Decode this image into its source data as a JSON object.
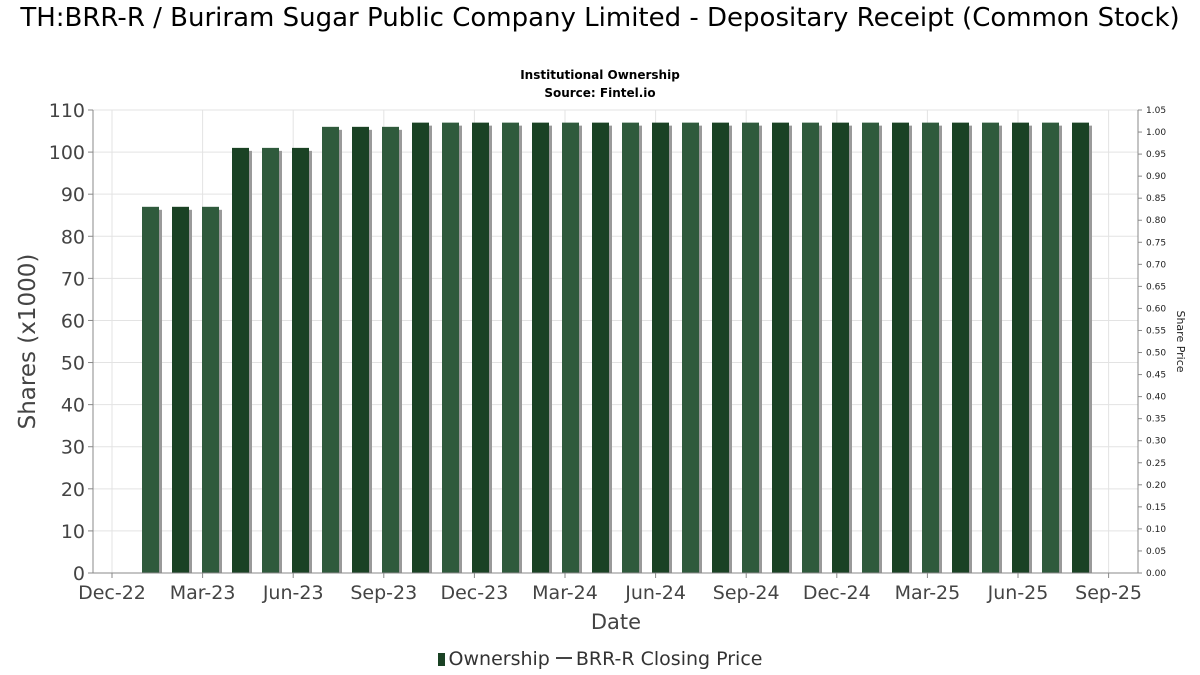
{
  "chart_data": {
    "type": "bar",
    "title": "TH:BRR-R / Buriram Sugar Public Company Limited - Depositary Receipt (Common Stock)",
    "subtitle": "Institutional Ownership",
    "source": "Source: Fintel.io",
    "xlabel": "Date",
    "ylabel": "Shares (x1000)",
    "y2label": "Share Price",
    "ylim": [
      0,
      110
    ],
    "y2lim": [
      0,
      1.05
    ],
    "yticks": [
      "0",
      "10",
      "20",
      "30",
      "40",
      "50",
      "60",
      "70",
      "80",
      "90",
      "100",
      "110"
    ],
    "y2ticks": [
      "0.00",
      "0.05",
      "0.10",
      "0.15",
      "0.20",
      "0.25",
      "0.30",
      "0.35",
      "0.40",
      "0.45",
      "0.50",
      "0.55",
      "0.60",
      "0.65",
      "0.70",
      "0.75",
      "0.80",
      "0.85",
      "0.90",
      "0.95",
      "1.00",
      "1.05"
    ],
    "xticks": [
      "Dec-22",
      "Mar-23",
      "Jun-23",
      "Sep-23",
      "Dec-23",
      "Mar-24",
      "Jun-24",
      "Sep-24",
      "Dec-24",
      "Mar-25",
      "Jun-25",
      "Sep-25"
    ],
    "grid": true,
    "legend_position": "bottom",
    "series": [
      {
        "name": "Ownership",
        "color": "#1a4224",
        "values": [
          87,
          87,
          87,
          101,
          101,
          101,
          106,
          106,
          106,
          107,
          107,
          107,
          107,
          107,
          107,
          107,
          107,
          107,
          107,
          107,
          107,
          107,
          107,
          107,
          107,
          107,
          107,
          107,
          107,
          107,
          107,
          107
        ]
      },
      {
        "name": "BRR-R Closing Price",
        "color": "#444444",
        "values": []
      }
    ]
  }
}
